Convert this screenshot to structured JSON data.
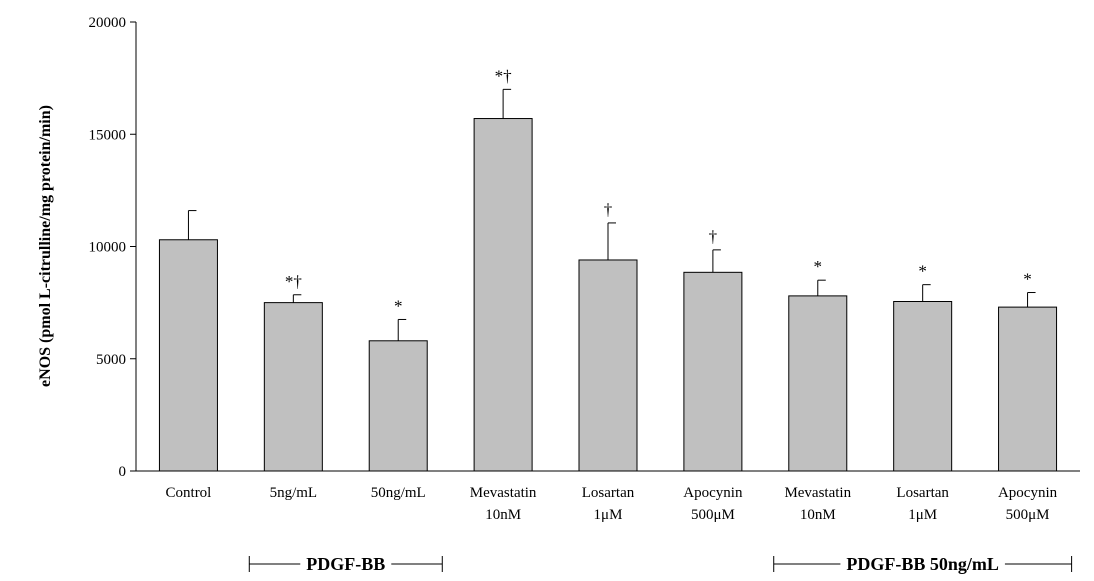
{
  "chart_data": {
    "type": "bar",
    "ylabel": "eNOS (pmol L-citrulline/mg protein/min)",
    "ylim": [
      0,
      20000
    ],
    "yticks": [
      "0",
      "5000",
      "10000",
      "15000",
      "20000"
    ],
    "bar_color": "#c0c0c0",
    "categories": [
      [
        "Control"
      ],
      [
        "5ng/mL"
      ],
      [
        "50ng/mL"
      ],
      [
        "Mevastatin",
        "10nM"
      ],
      [
        "Losartan",
        "1μM"
      ],
      [
        "Apocynin",
        "500μM"
      ],
      [
        "Mevastatin",
        "10nM"
      ],
      [
        "Losartan",
        "1μM"
      ],
      [
        "Apocynin",
        "500μM"
      ]
    ],
    "values": [
      10300,
      7500,
      5800,
      15700,
      9400,
      8850,
      7800,
      7550,
      7300
    ],
    "errors": [
      1300,
      350,
      950,
      1300,
      1650,
      1000,
      700,
      750,
      650
    ],
    "annotations": [
      "",
      "*†",
      "*",
      "*†",
      "†",
      "†",
      "*",
      "*",
      "*"
    ],
    "groups": [
      {
        "label": "PDGF-BB",
        "from": 1,
        "to": 2
      },
      {
        "label": "PDGF-BB 50ng/mL",
        "from": 6,
        "to": 8
      }
    ],
    "grid": false,
    "legend": "none"
  }
}
